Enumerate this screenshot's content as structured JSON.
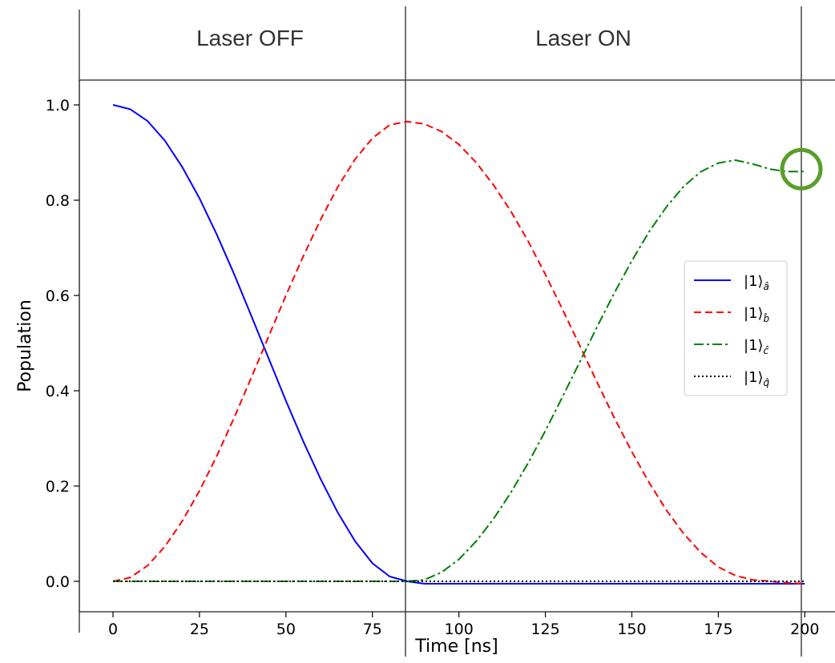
{
  "header": {
    "left_region_label": "Laser OFF",
    "right_region_label": "Laser ON"
  },
  "chart_data": {
    "type": "line",
    "xlabel": "Time [ns]",
    "ylabel": "Population",
    "xlim": [
      -10,
      205
    ],
    "ylim": [
      -0.05,
      1.05
    ],
    "xticks": [
      "0",
      "25",
      "50",
      "75",
      "100",
      "125",
      "150",
      "175",
      "200"
    ],
    "yticks": [
      "0.0",
      "0.2",
      "0.4",
      "0.6",
      "0.8",
      "1.0"
    ],
    "grid": false,
    "legend_placement": "center-right",
    "laser_switch_time": 85,
    "x": [
      0,
      5,
      10,
      15,
      20,
      25,
      30,
      35,
      40,
      45,
      50,
      55,
      60,
      65,
      70,
      75,
      80,
      85,
      90,
      95,
      100,
      105,
      110,
      115,
      120,
      125,
      130,
      135,
      140,
      145,
      150,
      155,
      160,
      165,
      170,
      175,
      180,
      185,
      190,
      195,
      200
    ],
    "series": [
      {
        "name": "|1⟩",
        "subscript": "â",
        "color": "#0000ff",
        "style": "solid",
        "values": [
          1.0,
          0.991,
          0.966,
          0.925,
          0.87,
          0.804,
          0.728,
          0.645,
          0.557,
          0.468,
          0.379,
          0.294,
          0.215,
          0.144,
          0.084,
          0.038,
          0.01,
          0.0,
          -0.005,
          -0.005,
          -0.005,
          -0.005,
          -0.005,
          -0.005,
          -0.005,
          -0.005,
          -0.005,
          -0.005,
          -0.005,
          -0.005,
          -0.005,
          -0.005,
          -0.005,
          -0.005,
          -0.005,
          -0.005,
          -0.005,
          -0.005,
          -0.005,
          -0.005,
          -0.005
        ]
      },
      {
        "name": "|1⟩",
        "subscript": "b̂",
        "color": "#ff0000",
        "style": "dashed",
        "values": [
          0.0,
          0.008,
          0.033,
          0.073,
          0.126,
          0.19,
          0.263,
          0.343,
          0.428,
          0.514,
          0.6,
          0.682,
          0.759,
          0.828,
          0.886,
          0.93,
          0.958,
          0.965,
          0.96,
          0.944,
          0.917,
          0.879,
          0.832,
          0.777,
          0.714,
          0.644,
          0.57,
          0.494,
          0.417,
          0.342,
          0.272,
          0.207,
          0.149,
          0.1,
          0.06,
          0.03,
          0.012,
          0.003,
          0.0,
          -0.003,
          -0.005
        ]
      },
      {
        "name": "|1⟩",
        "subscript": "ĉ",
        "color": "#008000",
        "style": "dashdot",
        "values": [
          0.0,
          0.0,
          0.0,
          0.0,
          0.0,
          0.0,
          0.0,
          0.0,
          0.0,
          0.0,
          0.0,
          0.0,
          0.0,
          0.0,
          0.0,
          0.0,
          0.0,
          0.0,
          0.003,
          0.019,
          0.046,
          0.084,
          0.131,
          0.186,
          0.248,
          0.316,
          0.388,
          0.461,
          0.535,
          0.606,
          0.673,
          0.734,
          0.786,
          0.829,
          0.86,
          0.878,
          0.884,
          0.876,
          0.865,
          0.86,
          0.86
        ]
      },
      {
        "name": "|1⟩",
        "subscript": "q̂",
        "color": "#000000",
        "style": "dotted",
        "values": [
          0.0,
          0.0,
          0.0,
          0.0,
          0.0,
          0.0,
          0.0,
          0.0,
          0.0,
          0.0,
          0.0,
          0.0,
          0.0,
          0.0,
          0.0,
          0.0,
          0.0,
          0.0,
          0.0,
          0.0,
          0.0,
          0.0,
          0.0,
          0.0,
          0.0,
          0.0,
          0.0,
          0.0,
          0.0,
          0.0,
          0.0,
          0.0,
          0.0,
          0.0,
          0.0,
          0.0,
          0.0,
          0.0,
          0.0,
          0.0,
          0.0
        ]
      }
    ],
    "annotation": {
      "shape": "circle",
      "color": "#5a9e2a",
      "x": 199,
      "y": 0.86
    }
  }
}
